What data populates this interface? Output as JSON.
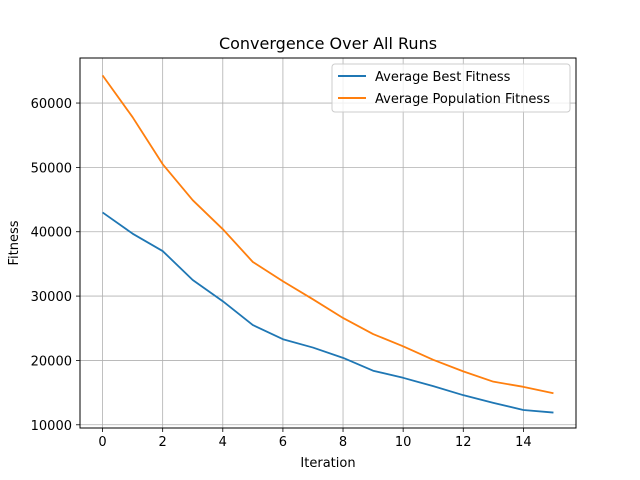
{
  "chart_data": {
    "type": "line",
    "title": "Convergence Over All Runs",
    "xlabel": "Iteration",
    "ylabel": "Fitness",
    "xlim": [
      -0.75,
      15.75
    ],
    "ylim": [
      9500,
      67000
    ],
    "xticks": [
      0,
      2,
      4,
      6,
      8,
      10,
      12,
      14
    ],
    "yticks": [
      10000,
      20000,
      30000,
      40000,
      50000,
      60000
    ],
    "grid": true,
    "legend_position": "top-right",
    "x": [
      0,
      1,
      2,
      3,
      4,
      5,
      6,
      7,
      8,
      9,
      10,
      11,
      12,
      13,
      14,
      15
    ],
    "series": [
      {
        "name": "Average Best Fitness",
        "color": "#1f77b4",
        "values": [
          43000,
          39700,
          37000,
          32500,
          29200,
          25500,
          23300,
          22000,
          20400,
          18400,
          17300,
          16000,
          14600,
          13400,
          12300,
          11900
        ]
      },
      {
        "name": "Average Population Fitness",
        "color": "#ff7f0e",
        "values": [
          64300,
          57800,
          50500,
          44900,
          40400,
          35300,
          32300,
          29500,
          26600,
          24100,
          22200,
          20100,
          18300,
          16700,
          15900,
          14900
        ]
      }
    ]
  }
}
